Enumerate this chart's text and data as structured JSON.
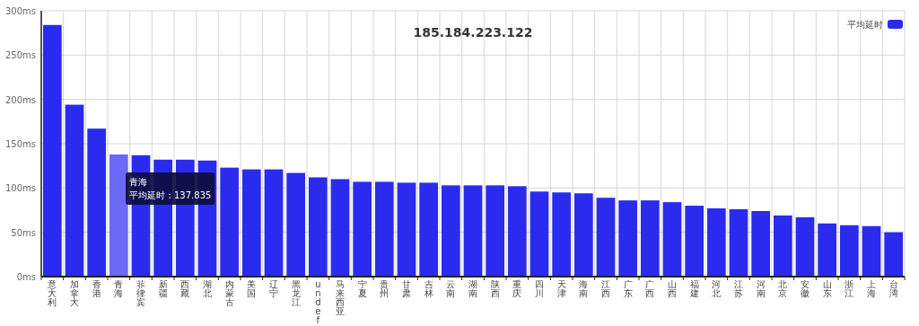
{
  "chart_data": {
    "type": "bar",
    "title": "185.184.223.122",
    "categories": [
      "意大利",
      "加拿大",
      "香港",
      "青海",
      "菲律宾",
      "新疆",
      "西藏",
      "湖北",
      "内蒙古",
      "美国",
      "辽宁",
      "黑龙江",
      "undef",
      "马来西亚",
      "宁夏",
      "贵州",
      "甘肃",
      "吉林",
      "云南",
      "湖南",
      "陕西",
      "重庆",
      "四川",
      "天津",
      "海南",
      "江西",
      "广东",
      "广西",
      "山西",
      "福建",
      "河北",
      "江苏",
      "河南",
      "北京",
      "安徽",
      "山东",
      "浙江",
      "上海",
      "台湾"
    ],
    "series": [
      {
        "name": "平均延时",
        "color": "#2b2bf0",
        "colors": [
          "#2b2bf0",
          "#2b2bf0",
          "#2b2bf0",
          "#6a6af5",
          "#2b2bf0",
          "#2b2bf0",
          "#2b2bf0",
          "#2b2bf0",
          "#2b2bf0",
          "#2b2bf0",
          "#2b2bf0",
          "#2b2bf0",
          "#2b2bf0",
          "#2b2bf0",
          "#2b2bf0",
          "#2b2bf0",
          "#2b2bf0",
          "#2b2bf0",
          "#2b2bf0",
          "#2b2bf0",
          "#2b2bf0",
          "#2b2bf0",
          "#2b2bf0",
          "#2b2bf0",
          "#2b2bf0",
          "#2b2bf0",
          "#2b2bf0",
          "#2b2bf0",
          "#2b2bf0",
          "#2b2bf0",
          "#2b2bf0",
          "#2b2bf0",
          "#2b2bf0",
          "#2b2bf0",
          "#2b2bf0",
          "#2b2bf0",
          "#2b2bf0",
          "#2b2bf0",
          "#2b2bf0"
        ],
        "values": [
          284,
          194,
          167,
          137.835,
          137,
          132,
          132,
          131,
          123,
          121,
          121,
          117,
          112,
          110,
          107,
          107,
          106,
          106,
          103,
          103,
          103,
          102,
          96,
          95,
          94,
          89,
          86,
          86,
          84,
          80,
          77,
          76,
          74,
          69,
          67,
          60,
          58,
          57,
          50
        ]
      }
    ],
    "ylim": [
      0,
      300
    ],
    "yticks": [
      {
        "value": 0,
        "label": "0ms"
      },
      {
        "value": 50,
        "label": "50ms"
      },
      {
        "value": 100,
        "label": "100ms"
      },
      {
        "value": 150,
        "label": "150ms"
      },
      {
        "value": 200,
        "label": "200ms"
      },
      {
        "value": 250,
        "label": "250ms"
      },
      {
        "value": 300,
        "label": "300ms"
      }
    ],
    "grid": true,
    "legend": "top right",
    "annotations": [
      "青海",
      "平均延时：137.835"
    ]
  }
}
